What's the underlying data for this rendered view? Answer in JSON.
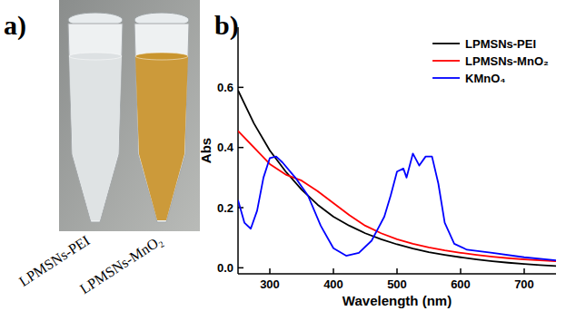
{
  "panel_a": {
    "letter": "a)",
    "tubes": [
      {
        "label": "LPMSNs-PEI",
        "color": "#dde1e3"
      },
      {
        "label": "LPMSNs-MnO₂",
        "color": "#c9952f"
      }
    ]
  },
  "chart_data": {
    "type": "line",
    "letter": "b)",
    "x_label": "Wavelength (nm)",
    "y_label": "Abs",
    "xlim": [
      250,
      750
    ],
    "xticks": [
      300,
      400,
      500,
      600,
      700
    ],
    "ylim": [
      -0.02,
      0.8
    ],
    "yticks": [
      {
        "value": 0,
        "label": "0.0"
      },
      0.2,
      0.4,
      0.6
    ],
    "legend": "upper right",
    "series": [
      {
        "name": "LPMSNs-PEI",
        "color": "#000000",
        "x": [
          250,
          275,
          300,
          325,
          350,
          375,
          400,
          425,
          450,
          475,
          500,
          525,
          550,
          575,
          600,
          625,
          650,
          675,
          700,
          725,
          750
        ],
        "values": [
          0.59,
          0.48,
          0.39,
          0.32,
          0.26,
          0.21,
          0.17,
          0.14,
          0.115,
          0.095,
          0.078,
          0.064,
          0.052,
          0.043,
          0.035,
          0.028,
          0.022,
          0.017,
          0.013,
          0.009,
          0.006
        ]
      },
      {
        "name": "LPMSNs-MnO₂",
        "color": "#ff0000",
        "x": [
          250,
          275,
          300,
          325,
          350,
          375,
          400,
          425,
          450,
          475,
          500,
          525,
          550,
          575,
          600,
          625,
          650,
          675,
          700,
          725,
          750
        ],
        "values": [
          0.455,
          0.4,
          0.345,
          0.31,
          0.29,
          0.255,
          0.215,
          0.175,
          0.14,
          0.115,
          0.095,
          0.08,
          0.068,
          0.058,
          0.05,
          0.043,
          0.037,
          0.032,
          0.028,
          0.025,
          0.022
        ]
      },
      {
        "name": "KMnO₄",
        "color": "#0000ff",
        "x": [
          250,
          260,
          270,
          280,
          290,
          300,
          310,
          320,
          340,
          360,
          380,
          400,
          420,
          440,
          460,
          480,
          490,
          500,
          510,
          515,
          525,
          535,
          545,
          555,
          565,
          575,
          590,
          610,
          650,
          700,
          750
        ],
        "values": [
          0.225,
          0.15,
          0.13,
          0.19,
          0.3,
          0.365,
          0.37,
          0.35,
          0.3,
          0.24,
          0.14,
          0.065,
          0.04,
          0.05,
          0.09,
          0.17,
          0.24,
          0.32,
          0.33,
          0.3,
          0.38,
          0.34,
          0.37,
          0.37,
          0.28,
          0.15,
          0.08,
          0.06,
          0.05,
          0.035,
          0.025
        ]
      }
    ]
  }
}
